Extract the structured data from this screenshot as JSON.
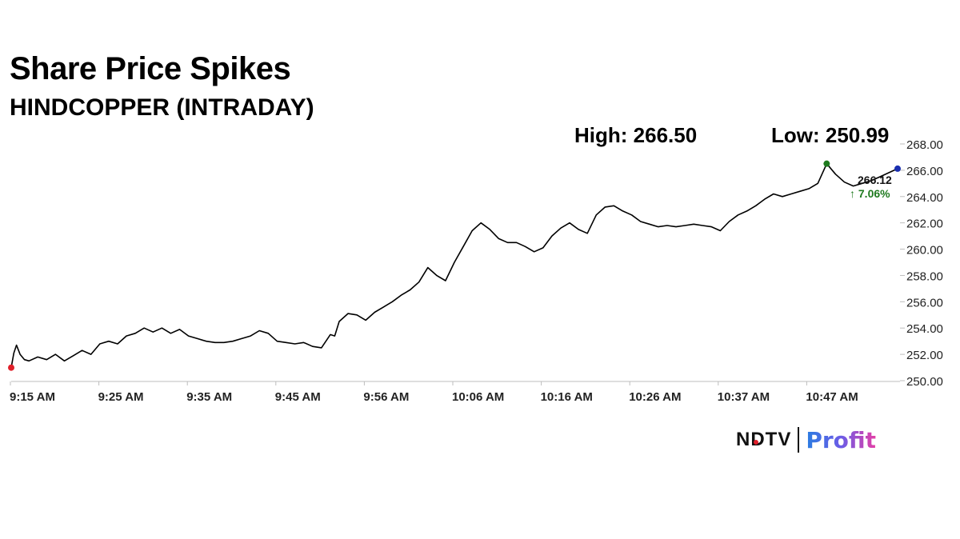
{
  "title": "Share Price Spikes",
  "subtitle": "HINDCOPPER (INTRADAY)",
  "high_label": "High: 266.50",
  "low_label": "Low: 250.99",
  "last_price": "266.12",
  "change": "↑ 7.06%",
  "logo": {
    "ndtv": "NDTV",
    "profit": "Profit"
  },
  "colors": {
    "line": "#000000",
    "open_marker": "#e0202a",
    "high_marker": "#1f7a1f",
    "last_marker": "#1a2fb0",
    "change": "#1f7a1f"
  },
  "chart_data": {
    "type": "line",
    "xlabels": [
      "9:15 AM",
      "9:25 AM",
      "9:35 AM",
      "9:45 AM",
      "9:56 AM",
      "10:06 AM",
      "10:16 AM",
      "10:26 AM",
      "10:37 AM",
      "10:47 AM"
    ],
    "yticks": [
      "250.00",
      "252.00",
      "254.00",
      "256.00",
      "258.00",
      "260.00",
      "262.00",
      "264.00",
      "266.00",
      "268.00"
    ],
    "ylim": [
      250,
      268
    ],
    "x_minutes_range": [
      0,
      100
    ],
    "series": [
      {
        "points": [
          [
            0,
            250.99
          ],
          [
            0.3,
            252.1
          ],
          [
            0.6,
            252.7
          ],
          [
            1.0,
            252.0
          ],
          [
            1.5,
            251.6
          ],
          [
            2,
            251.5
          ],
          [
            3,
            251.8
          ],
          [
            4,
            251.6
          ],
          [
            5,
            252.0
          ],
          [
            6,
            251.5
          ],
          [
            7,
            251.9
          ],
          [
            8,
            252.3
          ],
          [
            9,
            252.0
          ],
          [
            10,
            252.8
          ],
          [
            11,
            253.0
          ],
          [
            12,
            252.8
          ],
          [
            13,
            253.4
          ],
          [
            14,
            253.6
          ],
          [
            15,
            254.0
          ],
          [
            16,
            253.7
          ],
          [
            17,
            254.0
          ],
          [
            18,
            253.6
          ],
          [
            19,
            253.9
          ],
          [
            20,
            253.4
          ],
          [
            21,
            253.2
          ],
          [
            22,
            253.0
          ],
          [
            23,
            252.9
          ],
          [
            24,
            252.9
          ],
          [
            25,
            253.0
          ],
          [
            26,
            253.2
          ],
          [
            27,
            253.4
          ],
          [
            28,
            253.8
          ],
          [
            29,
            253.6
          ],
          [
            30,
            253.0
          ],
          [
            31,
            252.9
          ],
          [
            32,
            252.8
          ],
          [
            33,
            252.9
          ],
          [
            34,
            252.6
          ],
          [
            35,
            252.5
          ],
          [
            36,
            253.5
          ],
          [
            36.5,
            253.4
          ],
          [
            37,
            254.5
          ],
          [
            38,
            255.1
          ],
          [
            39,
            255.0
          ],
          [
            40,
            254.6
          ],
          [
            41,
            255.2
          ],
          [
            42,
            255.6
          ],
          [
            43,
            256.0
          ],
          [
            44,
            256.5
          ],
          [
            45,
            256.9
          ],
          [
            46,
            257.5
          ],
          [
            47,
            258.6
          ],
          [
            48,
            258.0
          ],
          [
            49,
            257.6
          ],
          [
            50,
            259.0
          ],
          [
            51,
            260.2
          ],
          [
            52,
            261.4
          ],
          [
            53,
            262.0
          ],
          [
            54,
            261.5
          ],
          [
            55,
            260.8
          ],
          [
            56,
            260.5
          ],
          [
            57,
            260.5
          ],
          [
            58,
            260.2
          ],
          [
            59,
            259.8
          ],
          [
            60,
            260.1
          ],
          [
            61,
            261.0
          ],
          [
            62,
            261.6
          ],
          [
            63,
            262.0
          ],
          [
            64,
            261.5
          ],
          [
            65,
            261.2
          ],
          [
            66,
            262.6
          ],
          [
            67,
            263.2
          ],
          [
            68,
            263.3
          ],
          [
            69,
            262.9
          ],
          [
            70,
            262.6
          ],
          [
            71,
            262.1
          ],
          [
            72,
            261.9
          ],
          [
            73,
            261.7
          ],
          [
            74,
            261.8
          ],
          [
            75,
            261.7
          ],
          [
            76,
            261.8
          ],
          [
            77,
            261.9
          ],
          [
            78,
            261.8
          ],
          [
            79,
            261.7
          ],
          [
            80,
            261.4
          ],
          [
            81,
            262.1
          ],
          [
            82,
            262.6
          ],
          [
            83,
            262.9
          ],
          [
            84,
            263.3
          ],
          [
            85,
            263.8
          ],
          [
            86,
            264.2
          ],
          [
            87,
            264.0
          ],
          [
            88,
            264.2
          ],
          [
            89,
            264.4
          ],
          [
            90,
            264.6
          ],
          [
            91,
            265.0
          ],
          [
            92,
            266.5
          ],
          [
            93,
            265.7
          ],
          [
            94,
            265.1
          ],
          [
            95,
            264.8
          ],
          [
            96,
            265.0
          ],
          [
            97,
            265.2
          ],
          [
            98,
            265.5
          ],
          [
            100,
            266.12
          ]
        ]
      }
    ],
    "markers": {
      "open": [
        0,
        250.99
      ],
      "high": [
        92,
        266.5
      ],
      "last": [
        100,
        266.12
      ]
    }
  }
}
